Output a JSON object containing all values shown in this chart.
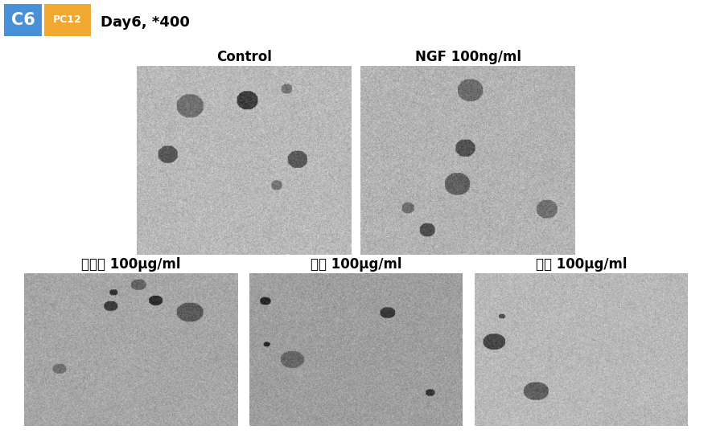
{
  "header_label1": "C6",
  "header_label2": "PC12",
  "header_text": "Day6, *400",
  "color_c6": "#4a90d9",
  "color_pc12": "#f0a830",
  "bg_color": "#ffffff",
  "panel_titles_row1": [
    "Control",
    "NGF 100ng/ml"
  ],
  "panel_titles_row2": [
    "토마토 100μg/ml",
    "기장 100μg/ml",
    "레모 100μg/ml"
  ],
  "gray_level_row1": [
    0.72,
    0.7
  ],
  "gray_level_row2": [
    0.65,
    0.62,
    0.72
  ],
  "title_fontsize": 12,
  "header_fontsize": 13,
  "fig_w": 8.85,
  "fig_h": 5.55,
  "dpi": 100
}
